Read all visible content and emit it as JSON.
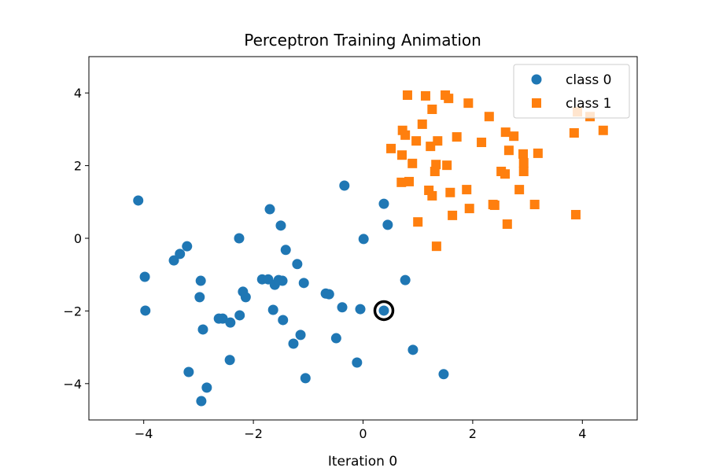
{
  "chart_data": {
    "type": "scatter",
    "title": "Perceptron Training Animation",
    "xlabel": "Iteration 0",
    "ylabel": "",
    "xlim": [
      -5,
      5
    ],
    "ylim": [
      -5,
      5
    ],
    "xticks": [
      -4,
      -2,
      0,
      2,
      4
    ],
    "yticks": [
      -4,
      -2,
      0,
      2,
      4
    ],
    "xtick_labels": [
      "−4",
      "−2",
      "0",
      "2",
      "4"
    ],
    "ytick_labels": [
      "−4",
      "−2",
      "0",
      "2",
      "4"
    ],
    "grid": false,
    "legend_position": "top-right",
    "series": [
      {
        "name": "class 0",
        "marker": "circle",
        "color": "#1f77b4",
        "points": [
          [
            -4.1,
            1.04
          ],
          [
            -3.98,
            -1.06
          ],
          [
            -3.97,
            -1.99
          ],
          [
            -3.45,
            -0.61
          ],
          [
            -3.34,
            -0.43
          ],
          [
            -3.21,
            -0.22
          ],
          [
            -2.96,
            -1.17
          ],
          [
            -2.98,
            -1.62
          ],
          [
            -2.92,
            -2.51
          ],
          [
            -3.18,
            -3.68
          ],
          [
            -2.85,
            -4.11
          ],
          [
            -2.95,
            -4.48
          ],
          [
            -2.26,
            0.0
          ],
          [
            -2.19,
            -1.47
          ],
          [
            -2.14,
            -1.62
          ],
          [
            -2.25,
            -2.12
          ],
          [
            -2.63,
            -2.21
          ],
          [
            -2.56,
            -2.21
          ],
          [
            -2.42,
            -2.32
          ],
          [
            -2.43,
            -3.35
          ],
          [
            -1.7,
            0.8
          ],
          [
            -1.5,
            0.35
          ],
          [
            -1.41,
            -0.32
          ],
          [
            -1.2,
            -0.71
          ],
          [
            -1.84,
            -1.13
          ],
          [
            -1.73,
            -1.13
          ],
          [
            -1.61,
            -1.28
          ],
          [
            -1.54,
            -1.15
          ],
          [
            -1.47,
            -1.17
          ],
          [
            -1.64,
            -1.97
          ],
          [
            -1.46,
            -2.25
          ],
          [
            -1.08,
            -1.23
          ],
          [
            -1.14,
            -2.66
          ],
          [
            -1.27,
            -2.9
          ],
          [
            -1.05,
            -3.85
          ],
          [
            -0.68,
            -1.52
          ],
          [
            -0.62,
            -1.54
          ],
          [
            -0.38,
            -1.9
          ],
          [
            -0.49,
            -2.75
          ],
          [
            -0.34,
            1.45
          ],
          [
            0.01,
            -0.02
          ],
          [
            -0.05,
            -1.95
          ],
          [
            -0.11,
            -3.42
          ],
          [
            0.38,
            0.95
          ],
          [
            0.45,
            0.37
          ],
          [
            0.77,
            -1.15
          ],
          [
            0.38,
            -1.99
          ],
          [
            0.91,
            -3.07
          ],
          [
            1.47,
            -3.74
          ]
        ]
      },
      {
        "name": "class 1",
        "marker": "square",
        "color": "#ff7f0e",
        "points": [
          [
            0.81,
            3.94
          ],
          [
            1.14,
            3.92
          ],
          [
            1.5,
            3.94
          ],
          [
            1.56,
            3.85
          ],
          [
            1.92,
            3.72
          ],
          [
            1.26,
            3.55
          ],
          [
            2.3,
            3.35
          ],
          [
            1.08,
            3.14
          ],
          [
            3.91,
            3.48
          ],
          [
            4.14,
            3.35
          ],
          [
            4.38,
            2.97
          ],
          [
            0.72,
            2.97
          ],
          [
            0.77,
            2.84
          ],
          [
            0.97,
            2.68
          ],
          [
            1.71,
            2.79
          ],
          [
            1.23,
            2.53
          ],
          [
            1.36,
            2.68
          ],
          [
            2.16,
            2.64
          ],
          [
            2.6,
            2.92
          ],
          [
            2.75,
            2.81
          ],
          [
            2.66,
            2.42
          ],
          [
            3.19,
            2.34
          ],
          [
            2.92,
            2.32
          ],
          [
            0.51,
            2.47
          ],
          [
            0.71,
            2.29
          ],
          [
            0.9,
            2.06
          ],
          [
            1.33,
            2.03
          ],
          [
            1.31,
            1.84
          ],
          [
            1.53,
            2.01
          ],
          [
            2.52,
            1.84
          ],
          [
            2.59,
            1.77
          ],
          [
            2.93,
            2.08
          ],
          [
            2.93,
            1.84
          ],
          [
            0.7,
            1.54
          ],
          [
            0.84,
            1.56
          ],
          [
            1.2,
            1.32
          ],
          [
            1.26,
            1.17
          ],
          [
            1.59,
            1.26
          ],
          [
            1.89,
            1.34
          ],
          [
            2.85,
            1.34
          ],
          [
            1.63,
            0.63
          ],
          [
            1.94,
            0.82
          ],
          [
            2.37,
            0.93
          ],
          [
            2.4,
            0.91
          ],
          [
            3.13,
            0.93
          ],
          [
            1.0,
            0.45
          ],
          [
            2.63,
            0.39
          ],
          [
            1.34,
            -0.22
          ],
          [
            3.88,
            0.65
          ],
          [
            3.85,
            2.9
          ]
        ]
      }
    ],
    "highlighted_point": [
      0.38,
      -1.99
    ],
    "highlight_color": "#000000"
  }
}
